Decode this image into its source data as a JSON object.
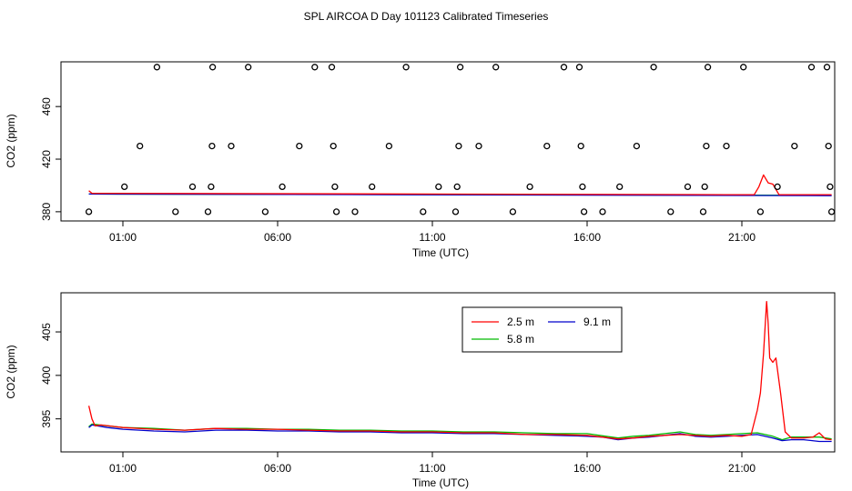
{
  "title": "SPL AIRCOA D  Day 101123  Calibrated Timeseries",
  "colors": {
    "s25": "#ff0000",
    "s58": "#00bb00",
    "s91": "#0000cc",
    "points": "#000000"
  },
  "chart_data": [
    {
      "type": "scatter+line",
      "xlabel": "Time (UTC)",
      "ylabel": "CO2 (ppm)",
      "xlim": [
        23.0,
        48.0
      ],
      "ylim": [
        373,
        494
      ],
      "xticks": [
        {
          "v": 25,
          "label": "01:00"
        },
        {
          "v": 30,
          "label": "06:00"
        },
        {
          "v": 35,
          "label": "11:00"
        },
        {
          "v": 40,
          "label": "16:00"
        },
        {
          "v": 45,
          "label": "21:00"
        }
      ],
      "yticks": [
        {
          "v": 380,
          "label": "380"
        },
        {
          "v": 420,
          "label": "420"
        },
        {
          "v": 460,
          "label": "460"
        }
      ],
      "points": [
        [
          23.9,
          380
        ],
        [
          25.05,
          399
        ],
        [
          25.55,
          430
        ],
        [
          26.1,
          490
        ],
        [
          26.7,
          380
        ],
        [
          27.25,
          399
        ],
        [
          27.75,
          380
        ],
        [
          27.85,
          399
        ],
        [
          27.88,
          430
        ],
        [
          27.9,
          490
        ],
        [
          28.5,
          430
        ],
        [
          29.05,
          490
        ],
        [
          29.6,
          380
        ],
        [
          30.15,
          399
        ],
        [
          30.7,
          430
        ],
        [
          31.2,
          490
        ],
        [
          31.75,
          490
        ],
        [
          31.8,
          430
        ],
        [
          31.85,
          399
        ],
        [
          31.9,
          380
        ],
        [
          32.5,
          380
        ],
        [
          33.05,
          399
        ],
        [
          33.6,
          430
        ],
        [
          34.15,
          490
        ],
        [
          34.7,
          380
        ],
        [
          35.2,
          399
        ],
        [
          35.75,
          380
        ],
        [
          35.8,
          399
        ],
        [
          35.85,
          430
        ],
        [
          35.9,
          490
        ],
        [
          36.5,
          430
        ],
        [
          37.05,
          490
        ],
        [
          37.6,
          380
        ],
        [
          38.15,
          399
        ],
        [
          38.7,
          430
        ],
        [
          39.25,
          490
        ],
        [
          39.75,
          490
        ],
        [
          39.8,
          430
        ],
        [
          39.85,
          399
        ],
        [
          39.9,
          380
        ],
        [
          40.5,
          380
        ],
        [
          41.05,
          399
        ],
        [
          41.6,
          430
        ],
        [
          42.15,
          490
        ],
        [
          42.7,
          380
        ],
        [
          43.25,
          399
        ],
        [
          43.75,
          380
        ],
        [
          43.8,
          399
        ],
        [
          43.85,
          430
        ],
        [
          43.9,
          490
        ],
        [
          44.5,
          430
        ],
        [
          45.05,
          490
        ],
        [
          45.6,
          380
        ],
        [
          46.15,
          399
        ],
        [
          46.7,
          430
        ],
        [
          47.25,
          490
        ],
        [
          47.75,
          490
        ],
        [
          47.8,
          430
        ],
        [
          47.85,
          399
        ],
        [
          47.9,
          380
        ]
      ],
      "series": [
        {
          "name": "2.5 m",
          "x": [
            23.9,
            24.0,
            44.5,
            45.4,
            45.55,
            45.7,
            45.85,
            46.0,
            46.2,
            47.0,
            47.6,
            47.9
          ],
          "values": [
            396,
            394,
            393,
            393,
            399,
            408,
            402,
            401,
            393,
            393,
            393,
            393
          ]
        },
        {
          "name": "5.8 m",
          "x": [
            23.9,
            47.9
          ],
          "values": [
            393.5,
            392.5
          ]
        },
        {
          "name": "9.1 m",
          "x": [
            23.9,
            47.9
          ],
          "values": [
            393.5,
            392.2
          ]
        }
      ]
    },
    {
      "type": "line",
      "xlabel": "Time (UTC)",
      "ylabel": "CO2 (ppm)",
      "xlim": [
        23.0,
        48.0
      ],
      "ylim": [
        391.2,
        409.5
      ],
      "xticks": [
        {
          "v": 25,
          "label": "01:00"
        },
        {
          "v": 30,
          "label": "06:00"
        },
        {
          "v": 35,
          "label": "11:00"
        },
        {
          "v": 40,
          "label": "16:00"
        },
        {
          "v": 45,
          "label": "21:00"
        }
      ],
      "yticks": [
        {
          "v": 395,
          "label": "395"
        },
        {
          "v": 400,
          "label": "400"
        },
        {
          "v": 405,
          "label": "405"
        }
      ],
      "legend": {
        "position": "top-right",
        "entries": [
          "2.5 m",
          "5.8 m",
          "9.1 m"
        ]
      },
      "series": [
        {
          "name": "2.5 m",
          "x": [
            23.9,
            24.0,
            24.1,
            24.3,
            25.0,
            26.0,
            27.0,
            28.0,
            29.0,
            30.0,
            31.0,
            32.0,
            33.0,
            34.0,
            35.0,
            36.0,
            37.0,
            38.0,
            39.0,
            40.0,
            41.0,
            41.5,
            42.0,
            43.0,
            44.0,
            44.5,
            45.0,
            45.3,
            45.5,
            45.6,
            45.7,
            45.8,
            45.85,
            45.9,
            46.0,
            46.1,
            46.25,
            46.4,
            46.6,
            47.0,
            47.3,
            47.5,
            47.7,
            47.9
          ],
          "values": [
            396.5,
            395.0,
            394.2,
            394.3,
            394.0,
            393.8,
            393.7,
            393.9,
            393.8,
            393.8,
            393.7,
            393.6,
            393.6,
            393.5,
            393.5,
            393.4,
            393.4,
            393.2,
            393.2,
            393.1,
            392.7,
            392.8,
            393.0,
            393.2,
            393.0,
            393.1,
            393.0,
            393.2,
            396.0,
            398.0,
            402.5,
            408.5,
            406.0,
            402.0,
            401.5,
            402.0,
            398.0,
            393.5,
            392.8,
            392.8,
            392.9,
            393.4,
            392.7,
            392.6
          ]
        },
        {
          "name": "5.8 m",
          "x": [
            23.9,
            24.0,
            24.5,
            25.0,
            26.0,
            27.0,
            28.0,
            29.0,
            30.0,
            31.0,
            32.0,
            33.0,
            34.0,
            35.0,
            36.0,
            37.0,
            38.0,
            39.0,
            40.0,
            41.0,
            41.5,
            42.0,
            42.5,
            43.0,
            43.5,
            44.0,
            44.5,
            45.0,
            45.5,
            46.0,
            46.3,
            46.6,
            47.0,
            47.5,
            47.9
          ],
          "values": [
            394.1,
            394.4,
            394.2,
            394.0,
            393.9,
            393.7,
            393.9,
            393.9,
            393.8,
            393.8,
            393.7,
            393.7,
            393.6,
            393.6,
            393.5,
            393.5,
            393.4,
            393.3,
            393.3,
            392.8,
            393.0,
            393.1,
            393.3,
            393.5,
            393.2,
            393.1,
            393.2,
            393.3,
            393.4,
            393.0,
            392.6,
            392.9,
            392.9,
            392.9,
            392.7
          ]
        },
        {
          "name": "9.1 m",
          "x": [
            23.9,
            24.0,
            24.5,
            25.0,
            26.0,
            27.0,
            28.0,
            29.0,
            30.0,
            31.0,
            32.0,
            33.0,
            34.0,
            35.0,
            36.0,
            37.0,
            38.0,
            39.0,
            40.0,
            40.5,
            41.0,
            41.5,
            42.0,
            42.5,
            43.0,
            43.5,
            44.0,
            44.5,
            45.0,
            45.5,
            46.0,
            46.3,
            46.6,
            47.0,
            47.5,
            47.9
          ],
          "values": [
            394.0,
            394.3,
            394.0,
            393.8,
            393.6,
            393.5,
            393.7,
            393.7,
            393.6,
            393.6,
            393.5,
            393.5,
            393.4,
            393.4,
            393.3,
            393.3,
            393.2,
            393.1,
            393.0,
            392.9,
            392.6,
            392.8,
            392.9,
            393.1,
            393.3,
            393.0,
            392.9,
            393.0,
            393.1,
            393.2,
            392.8,
            392.5,
            392.6,
            392.6,
            392.4,
            392.4
          ]
        }
      ]
    }
  ]
}
